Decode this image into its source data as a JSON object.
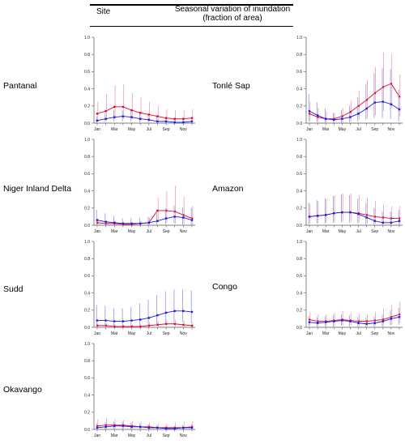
{
  "header": {
    "site": "Site",
    "title_line1": "Seasonal variation of inundation",
    "title_line2": "(fraction of area)"
  },
  "colors": {
    "red": "#e8002a",
    "blue": "#1a1ae6",
    "red_err": "#f29aa6",
    "blue_err": "#8f8ff0",
    "axis": "#555555"
  },
  "chart_data": [
    {
      "type": "line",
      "site": "Pantanal",
      "x": [
        "Jan",
        "Feb",
        "Mar",
        "Apr",
        "May",
        "Jun",
        "Jul",
        "Aug",
        "Sep",
        "Oct",
        "Nov",
        "Dec"
      ],
      "x_tick_labels": [
        "Jan",
        "Mar",
        "May",
        "Jul",
        "Sep",
        "Nov"
      ],
      "y_ticks": [
        "0.0",
        "0.2",
        "0.4",
        "0.6",
        "0.8",
        "1.0"
      ],
      "ylim": [
        0,
        1
      ],
      "series": [
        {
          "color": "red",
          "values": [
            0.11,
            0.14,
            0.19,
            0.19,
            0.15,
            0.12,
            0.1,
            0.08,
            0.06,
            0.05,
            0.05,
            0.06
          ],
          "upper": [
            0.25,
            0.34,
            0.44,
            0.45,
            0.35,
            0.3,
            0.25,
            0.2,
            0.16,
            0.15,
            0.15,
            0.16
          ],
          "lower": [
            0.02,
            0.03,
            0.05,
            0.05,
            0.04,
            0.02,
            0.02,
            0.01,
            0.01,
            0.01,
            0.01,
            0.01
          ]
        },
        {
          "color": "blue",
          "values": [
            0.03,
            0.05,
            0.07,
            0.08,
            0.07,
            0.05,
            0.04,
            0.02,
            0.02,
            0.01,
            0.01,
            0.02
          ],
          "upper": [
            0.08,
            0.12,
            0.15,
            0.15,
            0.14,
            0.11,
            0.09,
            0.07,
            0.05,
            0.04,
            0.04,
            0.05
          ],
          "lower": [
            0.0,
            0.01,
            0.02,
            0.02,
            0.02,
            0.01,
            0.01,
            0.0,
            0.0,
            0.0,
            0.0,
            0.0
          ]
        }
      ]
    },
    {
      "type": "line",
      "site": "Tonlé Sap",
      "x": [
        "Jan",
        "Feb",
        "Mar",
        "Apr",
        "May",
        "Jun",
        "Jul",
        "Aug",
        "Sep",
        "Oct",
        "Nov",
        "Dec"
      ],
      "x_tick_labels": [
        "Jan",
        "Mar",
        "May",
        "Jul",
        "Sep",
        "Nov"
      ],
      "y_ticks": [
        "0.0",
        "0.2",
        "0.4",
        "0.6",
        "0.8",
        "1.0"
      ],
      "ylim": [
        0,
        1
      ],
      "series": [
        {
          "color": "red",
          "values": [
            0.11,
            0.07,
            0.05,
            0.05,
            0.08,
            0.13,
            0.2,
            0.27,
            0.35,
            0.42,
            0.46,
            0.31
          ],
          "upper": [
            0.25,
            0.18,
            0.14,
            0.12,
            0.18,
            0.26,
            0.38,
            0.5,
            0.65,
            0.82,
            0.8,
            0.57
          ],
          "lower": [
            0.02,
            0.01,
            0.0,
            0.0,
            0.01,
            0.02,
            0.04,
            0.06,
            0.09,
            0.14,
            0.18,
            0.08
          ]
        },
        {
          "color": "blue",
          "values": [
            0.14,
            0.09,
            0.05,
            0.04,
            0.05,
            0.07,
            0.11,
            0.17,
            0.24,
            0.25,
            0.22,
            0.16
          ],
          "upper": [
            0.34,
            0.24,
            0.17,
            0.12,
            0.15,
            0.2,
            0.3,
            0.45,
            0.58,
            0.64,
            0.63,
            0.39
          ],
          "lower": [
            0.02,
            0.01,
            0.0,
            0.0,
            0.0,
            0.01,
            0.02,
            0.04,
            0.06,
            0.06,
            0.05,
            0.02
          ]
        }
      ]
    },
    {
      "type": "line",
      "site": "Niger Inland Delta",
      "x": [
        "Jan",
        "Feb",
        "Mar",
        "Apr",
        "May",
        "Jun",
        "Jul",
        "Aug",
        "Sep",
        "Oct",
        "Nov",
        "Dec"
      ],
      "x_tick_labels": [
        "Jan",
        "Mar",
        "May",
        "Jul",
        "Sep",
        "Nov"
      ],
      "y_ticks": [
        "0.0",
        "0.2",
        "0.4",
        "0.6",
        "0.8",
        "1.0"
      ],
      "ylim": [
        0,
        1
      ],
      "series": [
        {
          "color": "red",
          "values": [
            0.03,
            0.02,
            0.02,
            0.01,
            0.01,
            0.02,
            0.03,
            0.17,
            0.17,
            0.16,
            0.12,
            0.08
          ],
          "upper": [
            0.08,
            0.06,
            0.05,
            0.04,
            0.04,
            0.05,
            0.09,
            0.32,
            0.4,
            0.46,
            0.33,
            0.22
          ],
          "lower": [
            0.0,
            0.0,
            0.0,
            0.0,
            0.0,
            0.0,
            0.0,
            0.04,
            0.03,
            0.02,
            0.01,
            0.01
          ]
        },
        {
          "color": "blue",
          "values": [
            0.06,
            0.04,
            0.03,
            0.02,
            0.02,
            0.02,
            0.03,
            0.05,
            0.08,
            0.1,
            0.09,
            0.06
          ],
          "upper": [
            0.18,
            0.14,
            0.11,
            0.08,
            0.08,
            0.08,
            0.1,
            0.14,
            0.2,
            0.23,
            0.21,
            0.2
          ],
          "lower": [
            0.0,
            0.0,
            0.0,
            0.0,
            0.0,
            0.0,
            0.0,
            0.01,
            0.01,
            0.02,
            0.01,
            0.0
          ]
        }
      ]
    },
    {
      "type": "line",
      "site": "Amazon",
      "x": [
        "Jan",
        "Feb",
        "Mar",
        "Apr",
        "May",
        "Jun",
        "Jul",
        "Aug",
        "Sep",
        "Oct",
        "Nov",
        "Dec"
      ],
      "x_tick_labels": [
        "Jan",
        "Mar",
        "May",
        "Jul",
        "Sep",
        "Nov"
      ],
      "y_ticks": [
        "0.0",
        "0.2",
        "0.4",
        "0.6",
        "0.8",
        "1.0"
      ],
      "ylim": [
        0,
        1
      ],
      "series": [
        {
          "color": "red",
          "values": [
            0.1,
            0.11,
            0.12,
            0.14,
            0.15,
            0.15,
            0.14,
            0.12,
            0.1,
            0.09,
            0.08,
            0.08
          ],
          "upper": [
            0.25,
            0.28,
            0.31,
            0.35,
            0.37,
            0.37,
            0.35,
            0.32,
            0.28,
            0.25,
            0.22,
            0.22
          ],
          "lower": [
            0.02,
            0.02,
            0.03,
            0.03,
            0.04,
            0.04,
            0.03,
            0.02,
            0.02,
            0.01,
            0.01,
            0.01
          ]
        },
        {
          "color": "blue",
          "values": [
            0.1,
            0.11,
            0.12,
            0.14,
            0.15,
            0.15,
            0.13,
            0.09,
            0.05,
            0.03,
            0.03,
            0.05
          ],
          "upper": [
            0.26,
            0.29,
            0.31,
            0.34,
            0.36,
            0.35,
            0.31,
            0.26,
            0.2,
            0.16,
            0.16,
            0.18
          ],
          "lower": [
            0.01,
            0.02,
            0.02,
            0.03,
            0.03,
            0.03,
            0.02,
            0.01,
            0.0,
            0.0,
            0.0,
            0.0
          ]
        }
      ]
    },
    {
      "type": "line",
      "site": "Sudd",
      "x": [
        "Jan",
        "Feb",
        "Mar",
        "Apr",
        "May",
        "Jun",
        "Jul",
        "Aug",
        "Sep",
        "Oct",
        "Nov",
        "Dec"
      ],
      "x_tick_labels": [
        "Jan",
        "Mar",
        "May",
        "Jul",
        "Sep",
        "Nov"
      ],
      "y_ticks": [
        "0.0",
        "0.2",
        "0.4",
        "0.6",
        "0.8",
        "1.0"
      ],
      "ylim": [
        0,
        1
      ],
      "series": [
        {
          "color": "red",
          "values": [
            0.02,
            0.02,
            0.01,
            0.01,
            0.01,
            0.01,
            0.02,
            0.03,
            0.04,
            0.04,
            0.03,
            0.02
          ],
          "upper": [
            0.05,
            0.05,
            0.04,
            0.03,
            0.03,
            0.04,
            0.06,
            0.08,
            0.09,
            0.09,
            0.08,
            0.06
          ],
          "lower": [
            0.0,
            0.0,
            0.0,
            0.0,
            0.0,
            0.0,
            0.0,
            0.0,
            0.01,
            0.01,
            0.0,
            0.0
          ]
        },
        {
          "color": "blue",
          "values": [
            0.08,
            0.08,
            0.07,
            0.07,
            0.08,
            0.09,
            0.11,
            0.14,
            0.17,
            0.19,
            0.19,
            0.18
          ],
          "upper": [
            0.26,
            0.25,
            0.22,
            0.22,
            0.24,
            0.28,
            0.32,
            0.38,
            0.42,
            0.44,
            0.44,
            0.43
          ],
          "lower": [
            0.01,
            0.01,
            0.01,
            0.01,
            0.01,
            0.01,
            0.02,
            0.03,
            0.05,
            0.06,
            0.06,
            0.05
          ]
        }
      ]
    },
    {
      "type": "line",
      "site": "Congo",
      "x": [
        "Jan",
        "Feb",
        "Mar",
        "Apr",
        "May",
        "Jun",
        "Jul",
        "Aug",
        "Sep",
        "Oct",
        "Nov",
        "Dec"
      ],
      "x_tick_labels": [
        "Jan",
        "Mar",
        "May",
        "Jul",
        "Sep",
        "Nov"
      ],
      "y_ticks": [
        "0.0",
        "0.2",
        "0.4",
        "0.6",
        "0.8",
        "1.0"
      ],
      "ylim": [
        0,
        1
      ],
      "series": [
        {
          "color": "red",
          "values": [
            0.09,
            0.07,
            0.07,
            0.08,
            0.09,
            0.08,
            0.07,
            0.07,
            0.08,
            0.09,
            0.12,
            0.15
          ],
          "upper": [
            0.18,
            0.15,
            0.15,
            0.17,
            0.19,
            0.17,
            0.15,
            0.15,
            0.18,
            0.22,
            0.26,
            0.3
          ],
          "lower": [
            0.02,
            0.01,
            0.01,
            0.01,
            0.02,
            0.02,
            0.01,
            0.01,
            0.02,
            0.02,
            0.03,
            0.05
          ]
        },
        {
          "color": "blue",
          "values": [
            0.06,
            0.05,
            0.06,
            0.07,
            0.08,
            0.07,
            0.05,
            0.04,
            0.05,
            0.07,
            0.1,
            0.12
          ],
          "upper": [
            0.13,
            0.12,
            0.13,
            0.14,
            0.15,
            0.14,
            0.12,
            0.11,
            0.12,
            0.15,
            0.2,
            0.23
          ],
          "lower": [
            0.01,
            0.01,
            0.01,
            0.01,
            0.02,
            0.01,
            0.01,
            0.0,
            0.01,
            0.01,
            0.02,
            0.03
          ]
        }
      ]
    },
    {
      "type": "line",
      "site": "Okavango",
      "x": [
        "Jan",
        "Feb",
        "Mar",
        "Apr",
        "May",
        "Jun",
        "Jul",
        "Aug",
        "Sep",
        "Oct",
        "Nov",
        "Dec"
      ],
      "x_tick_labels": [
        "Jan",
        "Mar",
        "May",
        "Jul",
        "Sep",
        "Nov"
      ],
      "y_ticks": [
        "0.0",
        "0.2",
        "0.4",
        "0.6",
        "0.8",
        "1.0"
      ],
      "ylim": [
        0,
        1
      ],
      "series": [
        {
          "color": "red",
          "values": [
            0.04,
            0.05,
            0.05,
            0.05,
            0.04,
            0.03,
            0.03,
            0.02,
            0.02,
            0.02,
            0.02,
            0.03
          ],
          "upper": [
            0.12,
            0.13,
            0.12,
            0.11,
            0.1,
            0.09,
            0.08,
            0.07,
            0.07,
            0.08,
            0.09,
            0.1
          ],
          "lower": [
            0.0,
            0.01,
            0.01,
            0.01,
            0.0,
            0.0,
            0.0,
            0.0,
            0.0,
            0.0,
            0.0,
            0.0
          ]
        },
        {
          "color": "blue",
          "values": [
            0.02,
            0.03,
            0.04,
            0.04,
            0.03,
            0.03,
            0.02,
            0.02,
            0.01,
            0.01,
            0.02,
            0.02
          ],
          "upper": [
            0.07,
            0.08,
            0.09,
            0.09,
            0.08,
            0.07,
            0.06,
            0.05,
            0.04,
            0.04,
            0.05,
            0.06
          ],
          "lower": [
            0.0,
            0.0,
            0.0,
            0.0,
            0.0,
            0.0,
            0.0,
            0.0,
            0.0,
            0.0,
            0.0,
            0.0
          ]
        }
      ]
    }
  ]
}
